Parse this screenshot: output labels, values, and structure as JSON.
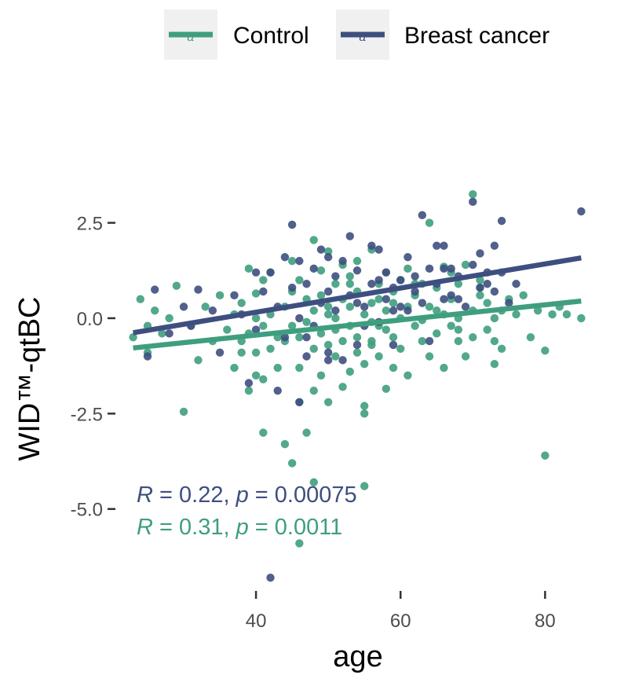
{
  "chart_data": {
    "type": "scatter",
    "xlabel": "age",
    "ylabel": "WID™-qtBC",
    "xlim": [
      22.5,
      85.5
    ],
    "ylim": [
      -6.9,
      3.5
    ],
    "x_ticks": [
      "40",
      "60",
      "80"
    ],
    "y_ticks": [
      "2.5",
      "0.0",
      "-2.5",
      "-5.0"
    ],
    "x_tick_values": [
      40,
      60,
      80
    ],
    "y_tick_values": [
      2.5,
      0.0,
      -2.5,
      -5.0
    ],
    "grid": false,
    "legend_position": "top",
    "legend_key_text": "a",
    "series": [
      {
        "name": "Control",
        "color": "#3f9e7e",
        "regression": {
          "x": [
            23,
            85
          ],
          "y": [
            -0.78,
            0.45
          ]
        },
        "stat_label": {
          "r_sym": "R",
          "r_eq": " = 0.31, ",
          "p_sym": "p",
          "p_eq": " = 0.0011"
        },
        "points": [
          [
            23,
            -0.5
          ],
          [
            24,
            0.5
          ],
          [
            25,
            -0.2
          ],
          [
            25,
            -0.9
          ],
          [
            26,
            0.2
          ],
          [
            27,
            -0.4
          ],
          [
            28,
            0.0
          ],
          [
            29,
            0.85
          ],
          [
            30,
            -2.45
          ],
          [
            31,
            -0.2
          ],
          [
            32,
            -1.1
          ],
          [
            33,
            0.3
          ],
          [
            34,
            -0.6
          ],
          [
            35,
            0.6
          ],
          [
            36,
            -0.3
          ],
          [
            37,
            0.1
          ],
          [
            37,
            -1.3
          ],
          [
            38,
            -0.9
          ],
          [
            38,
            0.4
          ],
          [
            38,
            -0.6
          ],
          [
            39,
            1.3
          ],
          [
            39,
            -1.9
          ],
          [
            39,
            -0.4
          ],
          [
            40,
            0.0
          ],
          [
            40,
            -1.5
          ],
          [
            40,
            0.65
          ],
          [
            40,
            -0.9
          ],
          [
            41,
            -3.0
          ],
          [
            41,
            -1.6
          ],
          [
            41,
            1.0
          ],
          [
            41,
            -0.2
          ],
          [
            42,
            0.1
          ],
          [
            42,
            -0.8
          ],
          [
            42,
            1.2
          ],
          [
            43,
            -0.5
          ],
          [
            43,
            -1.3
          ],
          [
            44,
            -3.3
          ],
          [
            44,
            0.3
          ],
          [
            44,
            -0.6
          ],
          [
            45,
            -3.8
          ],
          [
            45,
            1.5
          ],
          [
            45,
            -0.2
          ],
          [
            45,
            0.7
          ],
          [
            46,
            -2.2
          ],
          [
            46,
            -0.5
          ],
          [
            46,
            -1.3
          ],
          [
            46,
            1.0
          ],
          [
            47,
            -0.1
          ],
          [
            47,
            -3.0
          ],
          [
            47,
            0.5
          ],
          [
            48,
            2.05
          ],
          [
            48,
            -4.3
          ],
          [
            48,
            -1.9
          ],
          [
            48,
            -0.8
          ],
          [
            48,
            0.2
          ],
          [
            49,
            1.25
          ],
          [
            49,
            -0.4
          ],
          [
            49,
            0.6
          ],
          [
            49,
            -1.5
          ],
          [
            50,
            1.75
          ],
          [
            50,
            -0.7
          ],
          [
            50,
            0.3
          ],
          [
            50,
            -2.2
          ],
          [
            51,
            0.9
          ],
          [
            51,
            -1.0
          ],
          [
            51,
            0.0
          ],
          [
            51,
            -0.3
          ],
          [
            52,
            1.4
          ],
          [
            52,
            -0.6
          ],
          [
            52,
            0.5
          ],
          [
            52,
            -1.8
          ],
          [
            53,
            -0.2
          ],
          [
            53,
            1.1
          ],
          [
            53,
            -1.4
          ],
          [
            53,
            0.3
          ],
          [
            54,
            -0.9
          ],
          [
            54,
            0.7
          ],
          [
            54,
            -0.5
          ],
          [
            54,
            1.5
          ],
          [
            55,
            -2.3
          ],
          [
            55,
            -2.5
          ],
          [
            55,
            -4.4
          ],
          [
            55,
            0.1
          ],
          [
            55,
            -1.2
          ],
          [
            56,
            0.4
          ],
          [
            56,
            -0.7
          ],
          [
            56,
            1.8
          ],
          [
            56,
            -0.1
          ],
          [
            57,
            0.5
          ],
          [
            57,
            -1.0
          ],
          [
            57,
            0.9
          ],
          [
            58,
            -1.85
          ],
          [
            58,
            -0.3
          ],
          [
            58,
            1.2
          ],
          [
            58,
            0.2
          ],
          [
            59,
            -0.5
          ],
          [
            59,
            0.7
          ],
          [
            59,
            -1.3
          ],
          [
            60,
            0.0
          ],
          [
            60,
            1.0
          ],
          [
            60,
            -0.8
          ],
          [
            61,
            1.3
          ],
          [
            61,
            -1.5
          ],
          [
            61,
            0.3
          ],
          [
            62,
            -0.2
          ],
          [
            62,
            0.6
          ],
          [
            63,
            0.9
          ],
          [
            63,
            -0.6
          ],
          [
            63,
            -0.05
          ],
          [
            64,
            2.5
          ],
          [
            64,
            0.3
          ],
          [
            64,
            -1.0
          ],
          [
            65,
            0.8
          ],
          [
            65,
            -0.4
          ],
          [
            66,
            1.35
          ],
          [
            66,
            0.1
          ],
          [
            66,
            -1.3
          ],
          [
            67,
            0.5
          ],
          [
            67,
            -0.2
          ],
          [
            67,
            1.2
          ],
          [
            68,
            -0.6
          ],
          [
            68,
            0.9
          ],
          [
            68,
            0.0
          ],
          [
            69,
            1.4
          ],
          [
            69,
            -1.0
          ],
          [
            70,
            3.25
          ],
          [
            70,
            0.2
          ],
          [
            70,
            -0.5
          ],
          [
            71,
            0.6
          ],
          [
            71,
            1.0
          ],
          [
            72,
            -0.3
          ],
          [
            72,
            0.4
          ],
          [
            73,
            0.0
          ],
          [
            73,
            -1.2
          ],
          [
            74,
            -0.8
          ],
          [
            74,
            0.2
          ],
          [
            75,
            0.5
          ],
          [
            76,
            0.1
          ],
          [
            77,
            0.6
          ],
          [
            78,
            -0.5
          ],
          [
            79,
            0.2
          ],
          [
            80,
            -0.85
          ],
          [
            80,
            -3.6
          ],
          [
            81,
            0.1
          ],
          [
            82,
            0.3
          ],
          [
            83,
            0.1
          ],
          [
            85,
            0.0
          ],
          [
            46,
            -5.9
          ],
          [
            50,
            0.1
          ],
          [
            53,
            0.9
          ],
          [
            56,
            -0.6
          ],
          [
            57,
            -0.2
          ],
          [
            59,
            0.4
          ],
          [
            62,
            0.9
          ],
          [
            65,
            0.2
          ],
          [
            68,
            -0.3
          ],
          [
            71,
            0.8
          ],
          [
            73,
            -0.6
          ]
        ]
      },
      {
        "name": "Breast cancer",
        "color": "#3e4f7f",
        "regression": {
          "x": [
            23,
            85
          ],
          "y": [
            -0.38,
            1.58
          ]
        },
        "stat_label": {
          "r_sym": "R",
          "r_eq": " = 0.22, ",
          "p_sym": "p",
          "p_eq": " = 0.00075"
        },
        "points": [
          [
            25,
            -1.0
          ],
          [
            26,
            0.75
          ],
          [
            28,
            -0.4
          ],
          [
            30,
            0.3
          ],
          [
            31,
            -0.2
          ],
          [
            32,
            0.75
          ],
          [
            34,
            0.2
          ],
          [
            35,
            -0.9
          ],
          [
            37,
            0.6
          ],
          [
            38,
            0.1
          ],
          [
            39,
            -1.7
          ],
          [
            40,
            1.2
          ],
          [
            40,
            -0.3
          ],
          [
            41,
            0.7
          ],
          [
            42,
            1.2
          ],
          [
            43,
            -1.9
          ],
          [
            43,
            0.3
          ],
          [
            44,
            1.6
          ],
          [
            44,
            -0.5
          ],
          [
            45,
            0.8
          ],
          [
            45,
            2.45
          ],
          [
            46,
            -2.2
          ],
          [
            46,
            1.5
          ],
          [
            46,
            0.0
          ],
          [
            47,
            -1.0
          ],
          [
            47,
            0.9
          ],
          [
            48,
            1.3
          ],
          [
            48,
            -0.2
          ],
          [
            49,
            1.8
          ],
          [
            49,
            0.4
          ],
          [
            50,
            1.6
          ],
          [
            50,
            0.7
          ],
          [
            50,
            -0.9
          ],
          [
            51,
            1.1
          ],
          [
            51,
            0.2
          ],
          [
            52,
            -1.1
          ],
          [
            52,
            1.5
          ],
          [
            53,
            0.6
          ],
          [
            53,
            2.15
          ],
          [
            54,
            -0.7
          ],
          [
            54,
            1.25
          ],
          [
            55,
            0.3
          ],
          [
            55,
            -0.2
          ],
          [
            56,
            1.9
          ],
          [
            56,
            0.9
          ],
          [
            57,
            1.8
          ],
          [
            57,
            -0.1
          ],
          [
            58,
            0.5
          ],
          [
            58,
            1.2
          ],
          [
            59,
            0.8
          ],
          [
            59,
            -0.7
          ],
          [
            60,
            0.3
          ],
          [
            60,
            1.0
          ],
          [
            61,
            0.2
          ],
          [
            61,
            1.6
          ],
          [
            62,
            0.7
          ],
          [
            63,
            2.7
          ],
          [
            63,
            0.4
          ],
          [
            64,
            1.3
          ],
          [
            64,
            -0.6
          ],
          [
            65,
            1.9
          ],
          [
            65,
            0.9
          ],
          [
            66,
            0.5
          ],
          [
            66,
            1.9
          ],
          [
            67,
            1.3
          ],
          [
            67,
            0.6
          ],
          [
            68,
            1.1
          ],
          [
            69,
            0.3
          ],
          [
            70,
            3.05
          ],
          [
            70,
            1.4
          ],
          [
            71,
            0.8
          ],
          [
            71,
            1.7
          ],
          [
            72,
            0.9
          ],
          [
            73,
            1.9
          ],
          [
            73,
            0.7
          ],
          [
            74,
            2.55
          ],
          [
            74,
            1.2
          ],
          [
            75,
            0.4
          ],
          [
            76,
            0.9
          ],
          [
            85,
            2.8
          ],
          [
            42,
            -6.8
          ],
          [
            47,
            -0.5
          ],
          [
            50,
            -1.1
          ],
          [
            54,
            0.4
          ],
          [
            57,
            1.0
          ],
          [
            59,
            0.2
          ],
          [
            62,
            1.1
          ],
          [
            66,
            1.3
          ],
          [
            68,
            0.5
          ],
          [
            72,
            1.2
          ]
        ]
      }
    ]
  }
}
